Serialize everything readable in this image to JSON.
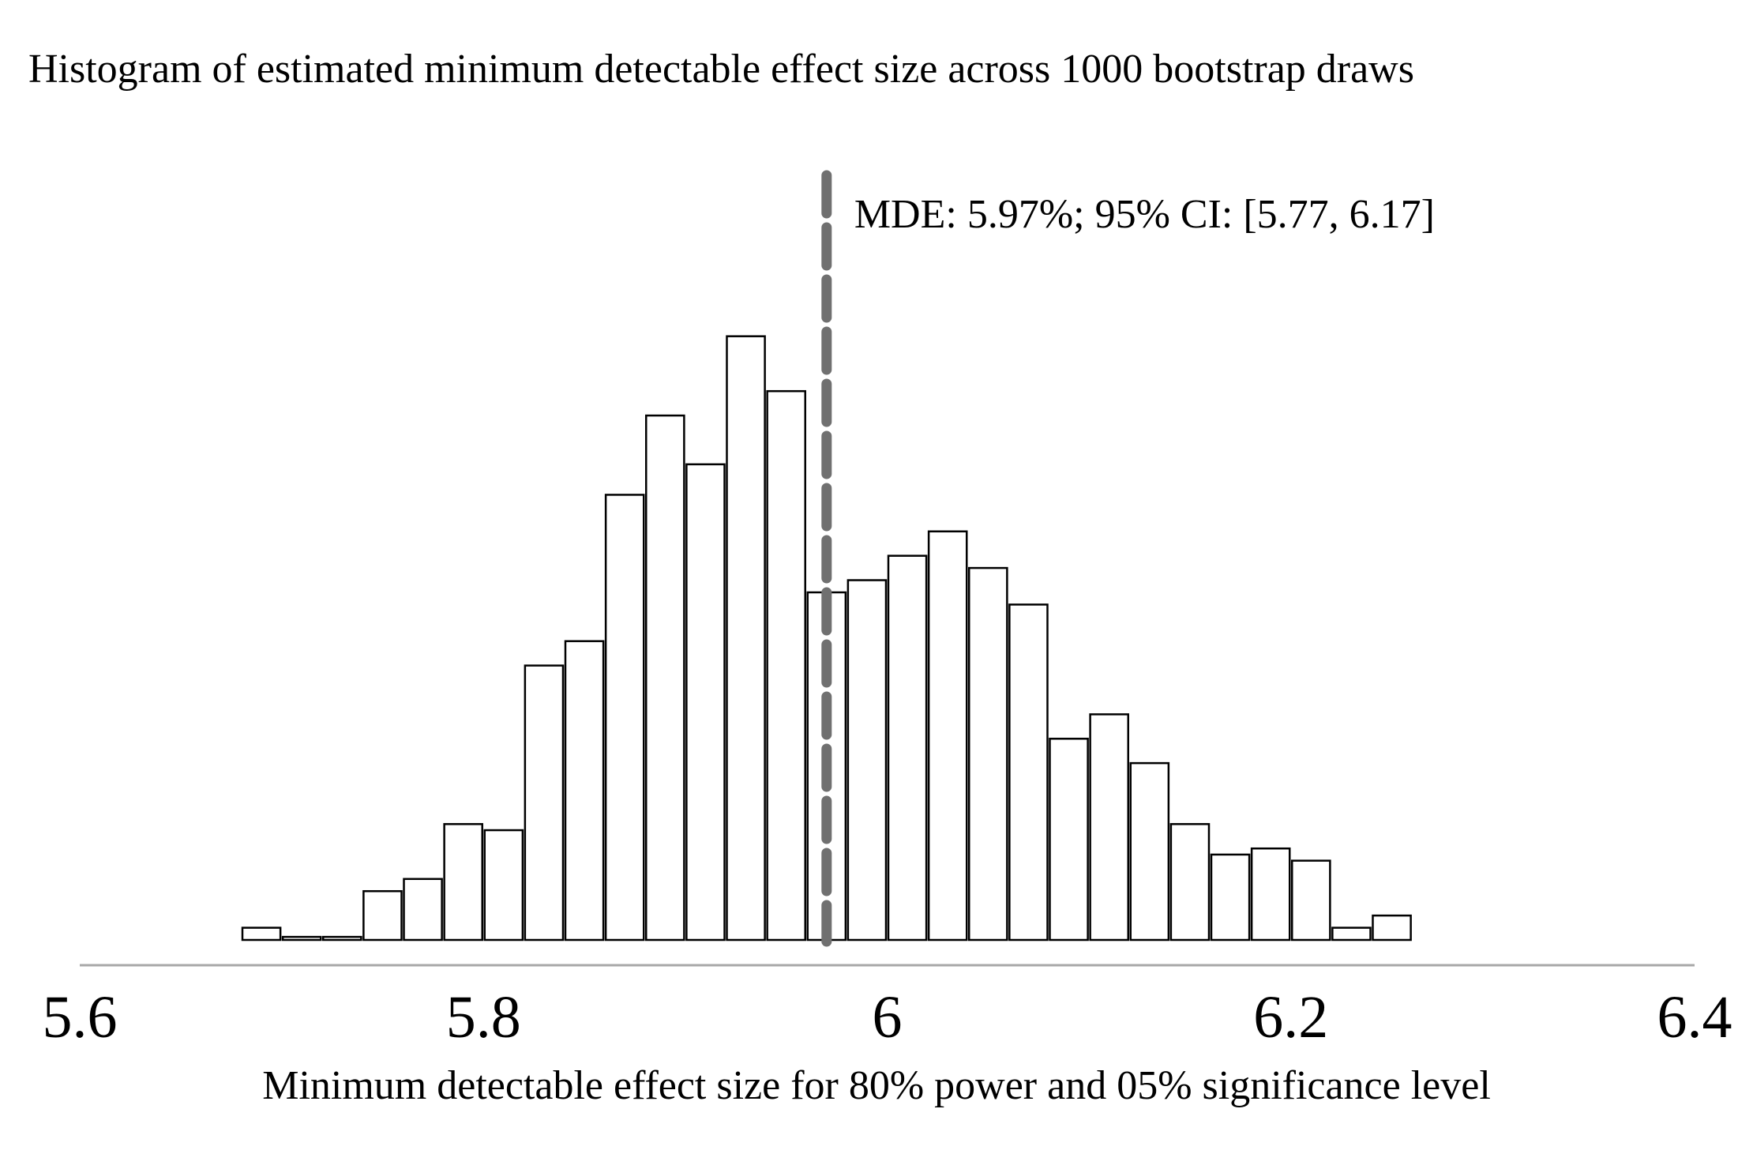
{
  "chart_data": {
    "type": "bar",
    "title": "Histogram of estimated minimum detectable effect size across 1000 bootstrap draws",
    "xlabel": "Minimum detectable effect size for 80% power and 05% significance level",
    "ylabel": "",
    "xlim": [
      5.6,
      6.4
    ],
    "x_ticks": [
      "5.6",
      "5.8",
      "6",
      "6.2",
      "6.4"
    ],
    "y_axis_visible": false,
    "grid": false,
    "bin_width": 0.02,
    "bins_start": [
      5.68,
      5.7,
      5.72,
      5.74,
      5.76,
      5.78,
      5.8,
      5.82,
      5.84,
      5.86,
      5.88,
      5.9,
      5.92,
      5.94,
      5.96,
      5.98,
      6.0,
      6.02,
      6.04,
      6.06,
      6.08,
      6.1,
      6.12,
      6.14,
      6.16,
      6.18,
      6.2,
      6.22,
      6.24,
      6.26
    ],
    "values": [
      2,
      0.5,
      0.5,
      8,
      10,
      19,
      18,
      45,
      49,
      73,
      86,
      78,
      99,
      90,
      57,
      59,
      63,
      67,
      61,
      55,
      33,
      37,
      29,
      19,
      14,
      15,
      13,
      2,
      4,
      0
    ],
    "mde_line": {
      "x": 5.97,
      "label": "MDE: 5.97%; 95% CI: [5.77, 6.17]",
      "color": "#707070",
      "style": "dashed"
    },
    "colors": {
      "bar_fill": "#ffffff",
      "bar_stroke": "#000000",
      "axis": "#a8a8a8"
    }
  }
}
